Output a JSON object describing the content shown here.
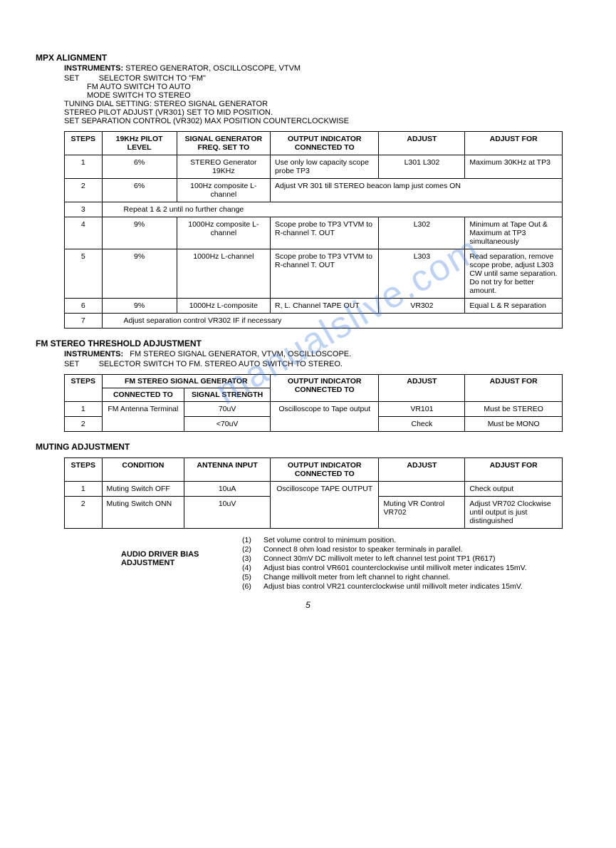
{
  "page_number": "5",
  "watermark": "manualslive.com",
  "mpx": {
    "title": "MPX ALIGNMENT",
    "instruments_label": "INSTRUMENTS:",
    "instruments": "STEREO GENERATOR, OSCILLOSCOPE, VTVM",
    "set_label": "SET",
    "set_lines": [
      "SELECTOR SWITCH TO \"FM\"",
      "FM AUTO SWITCH TO AUTO",
      "MODE SWITCH TO STEREO"
    ],
    "extra_lines": [
      "TUNING DIAL SETTING:  STEREO SIGNAL GENERATOR",
      "STEREO PILOT ADJUST (VR301) SET TO MID POSITION.",
      "SET SEPARATION CONTROL (VR302) MAX POSITION COUNTERCLOCKWISE"
    ],
    "headers": [
      "STEPS",
      "19KHz PILOT LEVEL",
      "SIGNAL GENERATOR FREQ. SET TO",
      "OUTPUT INDICATOR CONNECTED TO",
      "ADJUST",
      "ADJUST FOR"
    ],
    "col_widths": [
      "50px",
      "100px",
      "125px",
      "145px",
      "115px",
      "130px"
    ],
    "rows": [
      {
        "type": "normal",
        "cells": [
          "1",
          "6%",
          "STEREO Generator 19KHz",
          "Use only low capacity scope probe TP3",
          "L301 L302",
          "Maximum 30KHz at TP3"
        ]
      },
      {
        "type": "merge",
        "cells": [
          "2",
          "6%",
          "100Hz composite L-channel"
        ],
        "merged": "Adjust VR 301 till STEREO beacon lamp just comes ON",
        "merge_span": 3
      },
      {
        "type": "fullspan",
        "cells": [
          "3"
        ],
        "text": "Repeat 1 & 2 until no further change"
      },
      {
        "type": "normal",
        "cells": [
          "4",
          "9%",
          "1000Hz composite L-channel",
          "Scope probe to TP3 VTVM to R-channel T. OUT",
          "L302",
          "Minimum at Tape Out & Maximum at TP3 simultaneously"
        ]
      },
      {
        "type": "normal",
        "cells": [
          "5",
          "9%",
          "1000Hz L-channel",
          "Scope probe to TP3 VTVM to R-channel T. OUT",
          "L303",
          "Read separation, remove scope probe, adjust L303 CW until same separation. Do not try for better amount."
        ]
      },
      {
        "type": "normal",
        "cells": [
          "6",
          "9%",
          "1000Hz L-composite",
          "R, L. Channel TAPE OUT",
          "VR302",
          "Equal L & R separation"
        ]
      },
      {
        "type": "fullspan",
        "cells": [
          "7"
        ],
        "text": "Adjust separation control VR302 IF if necessary"
      }
    ]
  },
  "threshold": {
    "title": "FM STEREO THRESHOLD ADJUSTMENT",
    "instruments_label": "INSTRUMENTS:",
    "instruments": "FM STEREO SIGNAL GENERATOR, VTVM, OSCILLOSCOPE.",
    "set_label": "SET",
    "set_line": "SELECTOR SWITCH TO FM.  STEREO AUTO SWITCH TO STEREO.",
    "headers_top": [
      "STEPS",
      "FM STEREO SIGNAL GENERATOR",
      "OUTPUT INDICATOR CONNECTED TO",
      "ADJUST",
      "ADJUST FOR"
    ],
    "headers_sub": [
      "CONNECTED TO",
      "SIGNAL STRENGTH"
    ],
    "col_widths": [
      "50px",
      "110px",
      "115px",
      "145px",
      "115px",
      "130px"
    ],
    "rows": [
      [
        "1",
        "FM Antenna Terminal",
        "70uV",
        "Oscilloscope to Tape output",
        "VR101",
        "Must be STEREO"
      ],
      [
        "2",
        "",
        "<70uV",
        "",
        "Check",
        "Must be MONO"
      ]
    ]
  },
  "muting": {
    "title": "MUTING ADJUSTMENT",
    "headers": [
      "STEPS",
      "CONDITION",
      "ANTENNA INPUT",
      "OUTPUT INDICATOR CONNECTED TO",
      "ADJUST",
      "ADJUST FOR"
    ],
    "col_widths": [
      "50px",
      "110px",
      "115px",
      "145px",
      "115px",
      "130px"
    ],
    "rows": [
      [
        "1",
        "Muting Switch OFF",
        "10uA",
        "",
        "",
        "Check output"
      ],
      [
        "2",
        "Muting Switch ONN",
        "10uV",
        "",
        "Muting VR Control VR702",
        "Adjust VR702 Clockwise until output is just distinguished"
      ]
    ],
    "output_merged": "Oscilloscope TAPE OUTPUT"
  },
  "bias": {
    "title": "AUDIO DRIVER BIAS ADJUSTMENT",
    "items": [
      [
        "(1)",
        "Set volume control to minimum position."
      ],
      [
        "(2)",
        "Connect 8 ohm load resistor to speaker terminals in parallel."
      ],
      [
        "(3)",
        "Connect 30mV DC millivolt meter to left channel test point TP1 (R617)"
      ],
      [
        "(4)",
        "Adjust bias control VR601 counterclockwise until millivolt meter indicates 15mV."
      ],
      [
        "(5)",
        "Change millivolt meter from left channel to right channel."
      ],
      [
        "(6)",
        "Adjust bias control VR21 counterclockwise until millivolt meter indicates 15mV."
      ]
    ]
  }
}
